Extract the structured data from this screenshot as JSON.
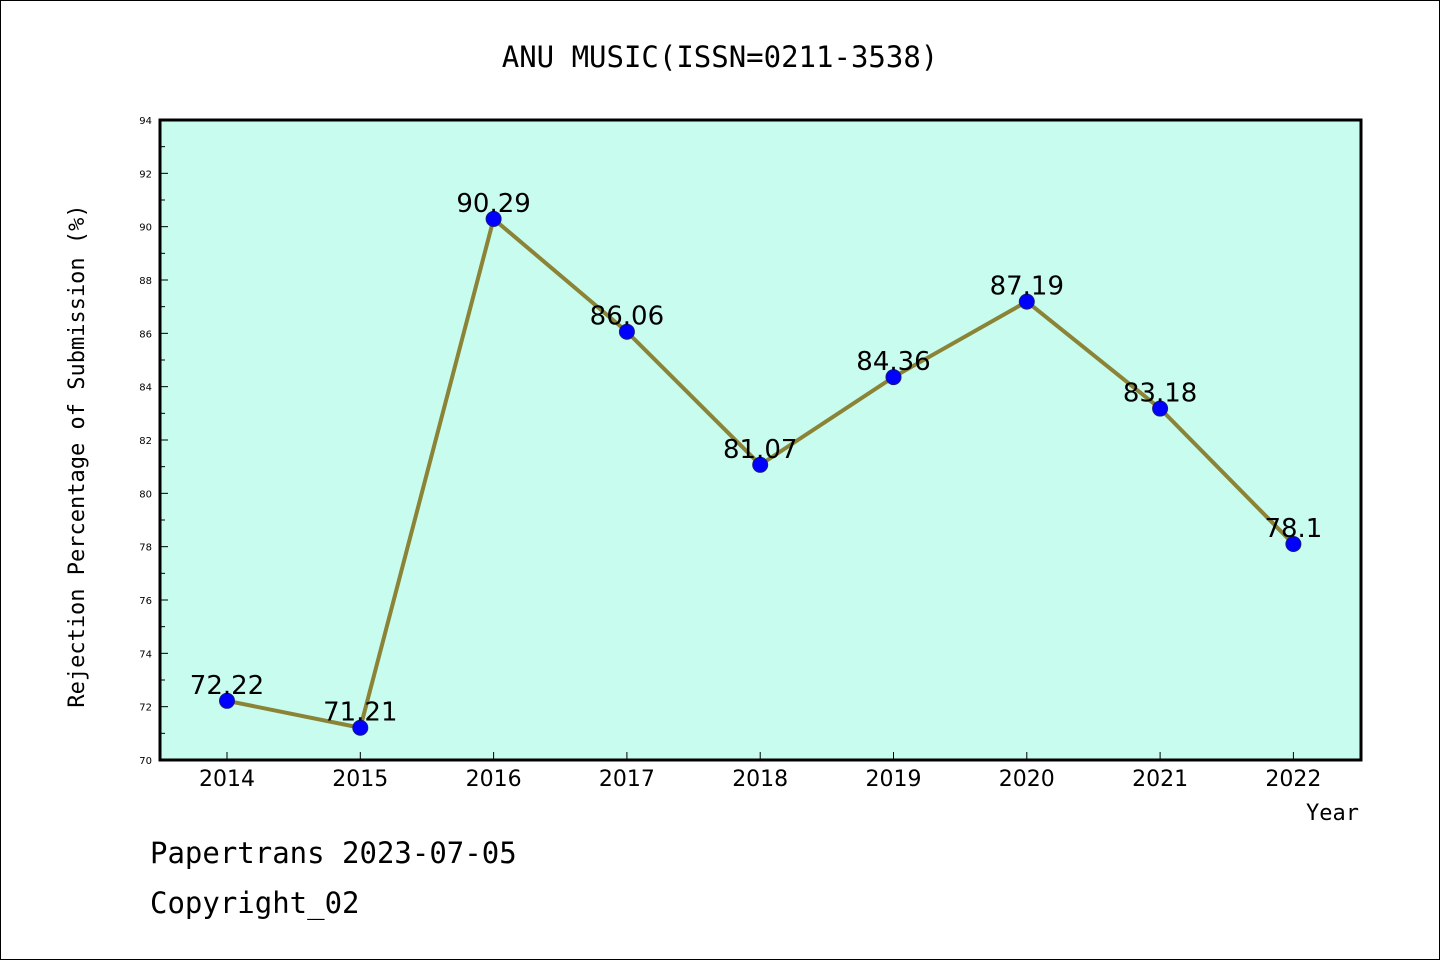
{
  "chart_data": {
    "type": "line",
    "title": "ANU MUSIC(ISSN=0211-3538)",
    "xlabel": "Year",
    "ylabel": "Rejection Percentage of Submission (%)",
    "categories": [
      "2014",
      "2015",
      "2016",
      "2017",
      "2018",
      "2019",
      "2020",
      "2021",
      "2022"
    ],
    "series": [
      {
        "values": [
          72.22,
          71.21,
          90.29,
          86.06,
          81.07,
          84.36,
          87.19,
          83.18,
          78.1
        ],
        "data_labels": [
          "72.22",
          "71.21",
          "90.29",
          "86.06",
          "81.07",
          "84.36",
          "87.19",
          "83.18",
          "78.1"
        ]
      }
    ],
    "ylim": [
      70,
      94
    ],
    "yticks": [
      "70",
      "72",
      "74",
      "76",
      "78",
      "80",
      "82",
      "84",
      "86",
      "88",
      "90",
      "92",
      "94"
    ],
    "grid": false,
    "colors": {
      "plot_background": "#c8fcee",
      "line": "#8b8336",
      "marker": "#0000ff"
    }
  },
  "footer": {
    "line1": "Papertrans 2023-07-05",
    "line2": "Copyright_02"
  }
}
